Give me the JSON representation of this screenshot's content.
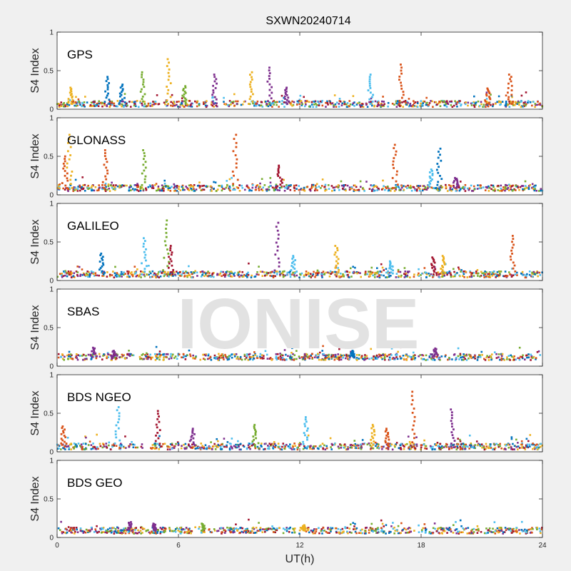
{
  "figure": {
    "title": "SXWN20240714",
    "xlabel": "UT(h)",
    "watermark": "IONISE"
  },
  "colors": {
    "background": "#f0f0f0",
    "axes_bg": "#ffffff",
    "axis": "#262626",
    "palette": [
      "#0072BD",
      "#D95319",
      "#EDB120",
      "#7E2F8E",
      "#77AC30",
      "#4DBEEE",
      "#A2142F"
    ]
  },
  "chart_data": [
    {
      "type": "scatter",
      "name": "GPS",
      "ylabel": "S4 Index",
      "xlim": [
        0,
        24
      ],
      "ylim": [
        0,
        1
      ],
      "xticks": [
        0,
        6,
        12,
        18,
        24
      ],
      "yticks": [
        0,
        0.5,
        1
      ],
      "ytick_labels": [
        "0",
        "0.5",
        "1"
      ],
      "baseline": 0.07,
      "spikes": [
        {
          "x": 0.7,
          "y": 0.28,
          "c": 2
        },
        {
          "x": 2.5,
          "y": 0.42,
          "c": 0
        },
        {
          "x": 3.2,
          "y": 0.32,
          "c": 0
        },
        {
          "x": 4.2,
          "y": 0.48,
          "c": 4
        },
        {
          "x": 5.5,
          "y": 0.65,
          "c": 2
        },
        {
          "x": 6.3,
          "y": 0.3,
          "c": 4
        },
        {
          "x": 7.8,
          "y": 0.45,
          "c": 3
        },
        {
          "x": 9.6,
          "y": 0.48,
          "c": 2
        },
        {
          "x": 10.5,
          "y": 0.54,
          "c": 3
        },
        {
          "x": 11.3,
          "y": 0.28,
          "c": 3
        },
        {
          "x": 15.5,
          "y": 0.45,
          "c": 5
        },
        {
          "x": 17.0,
          "y": 0.58,
          "c": 1
        },
        {
          "x": 21.3,
          "y": 0.27,
          "c": 1
        },
        {
          "x": 22.4,
          "y": 0.45,
          "c": 1
        }
      ]
    },
    {
      "type": "scatter",
      "name": "GLONASS",
      "ylabel": "S4 Index",
      "xlim": [
        0,
        24
      ],
      "ylim": [
        0,
        1
      ],
      "xticks": [
        0,
        6,
        12,
        18,
        24
      ],
      "yticks": [
        0,
        0.5,
        1
      ],
      "ytick_labels": [
        "0",
        "0.5",
        "1"
      ],
      "baseline": 0.09,
      "spikes": [
        {
          "x": 0.6,
          "y": 0.78,
          "c": 2
        },
        {
          "x": 0.4,
          "y": 0.5,
          "c": 1
        },
        {
          "x": 2.4,
          "y": 0.58,
          "c": 1
        },
        {
          "x": 4.3,
          "y": 0.58,
          "c": 4
        },
        {
          "x": 8.8,
          "y": 0.78,
          "c": 1
        },
        {
          "x": 11.0,
          "y": 0.38,
          "c": 6
        },
        {
          "x": 16.7,
          "y": 0.65,
          "c": 1
        },
        {
          "x": 18.5,
          "y": 0.33,
          "c": 5
        },
        {
          "x": 18.9,
          "y": 0.6,
          "c": 0
        },
        {
          "x": 19.7,
          "y": 0.22,
          "c": 3
        }
      ]
    },
    {
      "type": "scatter",
      "name": "GALILEO",
      "ylabel": "S4 Index",
      "xlim": [
        0,
        24
      ],
      "ylim": [
        0,
        1
      ],
      "xticks": [
        0,
        6,
        12,
        18,
        24
      ],
      "yticks": [
        0,
        0.5,
        1
      ],
      "ytick_labels": [
        "0",
        "0.5",
        "1"
      ],
      "baseline": 0.08,
      "spikes": [
        {
          "x": 2.2,
          "y": 0.35,
          "c": 0
        },
        {
          "x": 4.3,
          "y": 0.55,
          "c": 5
        },
        {
          "x": 5.4,
          "y": 0.78,
          "c": 4
        },
        {
          "x": 5.6,
          "y": 0.45,
          "c": 6
        },
        {
          "x": 10.9,
          "y": 0.75,
          "c": 3
        },
        {
          "x": 11.7,
          "y": 0.32,
          "c": 5
        },
        {
          "x": 13.8,
          "y": 0.45,
          "c": 2
        },
        {
          "x": 16.5,
          "y": 0.25,
          "c": 5
        },
        {
          "x": 18.6,
          "y": 0.3,
          "c": 6
        },
        {
          "x": 19.1,
          "y": 0.32,
          "c": 2
        },
        {
          "x": 22.5,
          "y": 0.58,
          "c": 1
        }
      ]
    },
    {
      "type": "scatter",
      "name": "SBAS",
      "ylabel": "S4 Index",
      "xlim": [
        0,
        24
      ],
      "ylim": [
        0,
        1
      ],
      "xticks": [
        0,
        6,
        12,
        18,
        24
      ],
      "yticks": [
        0,
        0.5,
        1
      ],
      "ytick_labels": [
        "0",
        "0.5",
        "1"
      ],
      "baseline": 0.12,
      "spikes": [
        {
          "x": 1.8,
          "y": 0.24,
          "c": 3
        },
        {
          "x": 2.8,
          "y": 0.2,
          "c": 3
        },
        {
          "x": 14.6,
          "y": 0.2,
          "c": 0
        },
        {
          "x": 18.7,
          "y": 0.23,
          "c": 3
        }
      ]
    },
    {
      "type": "scatter",
      "name": "BDS NGEO",
      "ylabel": "S4 Index",
      "xlim": [
        0,
        24
      ],
      "ylim": [
        0,
        1
      ],
      "xticks": [
        0,
        6,
        12,
        18,
        24
      ],
      "yticks": [
        0,
        0.5,
        1
      ],
      "ytick_labels": [
        "0",
        "0.5",
        "1"
      ],
      "baseline": 0.07,
      "spikes": [
        {
          "x": 0.3,
          "y": 0.33,
          "c": 1
        },
        {
          "x": 3.0,
          "y": 0.58,
          "c": 5
        },
        {
          "x": 5.0,
          "y": 0.53,
          "c": 6
        },
        {
          "x": 6.7,
          "y": 0.3,
          "c": 3
        },
        {
          "x": 9.8,
          "y": 0.35,
          "c": 4
        },
        {
          "x": 12.3,
          "y": 0.45,
          "c": 5
        },
        {
          "x": 15.6,
          "y": 0.35,
          "c": 2
        },
        {
          "x": 16.3,
          "y": 0.3,
          "c": 1
        },
        {
          "x": 17.6,
          "y": 0.78,
          "c": 1
        },
        {
          "x": 19.5,
          "y": 0.55,
          "c": 3
        }
      ]
    },
    {
      "type": "scatter",
      "name": "BDS GEO",
      "ylabel": "S4 Index",
      "xlim": [
        0,
        24
      ],
      "ylim": [
        0,
        1
      ],
      "xticks": [
        0,
        6,
        12,
        18,
        24
      ],
      "yticks": [
        0,
        0.5,
        1
      ],
      "ytick_labels": [
        "0",
        "0.5",
        "1"
      ],
      "baseline": 0.09,
      "spikes": [
        {
          "x": 3.6,
          "y": 0.2,
          "c": 3
        },
        {
          "x": 4.8,
          "y": 0.18,
          "c": 3
        },
        {
          "x": 7.2,
          "y": 0.18,
          "c": 4
        },
        {
          "x": 12.2,
          "y": 0.16,
          "c": 2
        }
      ]
    }
  ]
}
